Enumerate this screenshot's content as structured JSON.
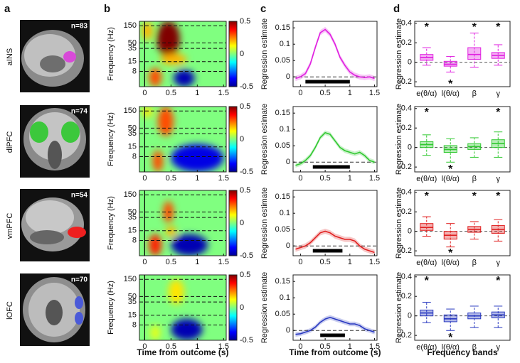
{
  "panel_labels": [
    "a",
    "b",
    "c",
    "d"
  ],
  "star_symbol": "*",
  "tf": {
    "ylabel": "Frequency (Hz)",
    "xlabel": "Time from outcome (s)",
    "log_y": true,
    "ylim": [
      3,
      200
    ],
    "yticks": [
      8,
      15,
      35,
      50,
      150
    ],
    "xlim": [
      -0.1,
      1.55
    ],
    "xticks": [
      0,
      0.5,
      1,
      1.5
    ],
    "clim": [
      -0.5,
      0.5
    ],
    "cticks": [
      0.5,
      0,
      -0.5
    ]
  },
  "curve_axis": {
    "ylabel": "Regression estimate",
    "xlabel": "Time from outcome (s)",
    "xlim": [
      -0.15,
      1.55
    ],
    "xticks": [
      0,
      0.5,
      1,
      1.5
    ],
    "x": [
      -0.1,
      0,
      0.1,
      0.2,
      0.3,
      0.4,
      0.5,
      0.6,
      0.7,
      0.8,
      0.9,
      1.0,
      1.1,
      1.2,
      1.3,
      1.4,
      1.5
    ]
  },
  "box_axis": {
    "ylabel": "Regression estimate",
    "xlabel": "Frequency bands",
    "categories": [
      "e(θ/α)",
      "l(θ/α)",
      "β",
      "γ"
    ],
    "ylim": [
      -0.25,
      0.42
    ],
    "yticks": [
      -0.2,
      0,
      0.2,
      0.4
    ]
  },
  "rows": [
    {
      "region": "aINS",
      "n_label": "n=83",
      "color": "#e020e0",
      "tf_blobs": [
        {
          "t": 0.45,
          "dt": 0.22,
          "f": [
            20,
            200
          ],
          "value": 0.5
        },
        {
          "t": 0.55,
          "dt": 0.25,
          "f": [
            12,
            25
          ],
          "value": 0.2
        },
        {
          "t": 0.2,
          "dt": 0.12,
          "f": [
            3,
            10
          ],
          "value": 0.3
        },
        {
          "t": 0.75,
          "dt": 0.2,
          "f": [
            3,
            9
          ],
          "value": -0.45
        },
        {
          "t": 0.05,
          "dt": 0.1,
          "f": [
            60,
            200
          ],
          "value": 0.2
        }
      ],
      "curve": {
        "values": [
          -0.005,
          0.0,
          0.01,
          0.04,
          0.09,
          0.135,
          0.145,
          0.13,
          0.1,
          0.06,
          0.035,
          0.015,
          0.005,
          0.0,
          -0.002,
          0.0,
          -0.005
        ],
        "sem": 0.008,
        "sig": [
          0.1,
          1.0
        ],
        "ylim": [
          -0.03,
          0.17
        ],
        "yticks": [
          0,
          0.05,
          0.1,
          0.15
        ]
      },
      "boxes": [
        {
          "whislo": -0.03,
          "q1": 0.02,
          "med": 0.05,
          "q3": 0.08,
          "whishi": 0.15,
          "star": "top"
        },
        {
          "whislo": -0.1,
          "q1": -0.04,
          "med": -0.02,
          "q3": 0.01,
          "whishi": 0.06,
          "star": "bottom"
        },
        {
          "whislo": -0.05,
          "q1": 0.03,
          "med": 0.08,
          "q3": 0.15,
          "whishi": 0.3,
          "star": "top"
        },
        {
          "whislo": -0.03,
          "q1": 0.04,
          "med": 0.07,
          "q3": 0.1,
          "whishi": 0.18,
          "star": "top"
        }
      ]
    },
    {
      "region": "dlPFC",
      "n_label": "n=74",
      "color": "#30c830",
      "tf_blobs": [
        {
          "t": 0.4,
          "dt": 0.15,
          "f": [
            30,
            200
          ],
          "value": 0.3
        },
        {
          "t": 0.25,
          "dt": 0.1,
          "f": [
            3,
            12
          ],
          "value": 0.3
        },
        {
          "t": 1.0,
          "dt": 0.5,
          "f": [
            3,
            18
          ],
          "value": -0.4
        },
        {
          "t": 0.05,
          "dt": 0.1,
          "f": [
            100,
            200
          ],
          "value": 0.15
        }
      ],
      "curve": {
        "values": [
          -0.01,
          -0.005,
          0.005,
          0.02,
          0.045,
          0.075,
          0.09,
          0.085,
          0.065,
          0.045,
          0.035,
          0.03,
          0.025,
          0.03,
          0.02,
          0.005,
          0.0
        ],
        "sem": 0.007,
        "sig": [
          0.25,
          1.0
        ],
        "ylim": [
          -0.03,
          0.17
        ],
        "yticks": [
          0,
          0.05,
          0.1,
          0.15
        ]
      },
      "boxes": [
        {
          "whislo": -0.08,
          "q1": 0.0,
          "med": 0.03,
          "q3": 0.06,
          "whishi": 0.13,
          "star": "top"
        },
        {
          "whislo": -0.15,
          "q1": -0.05,
          "med": -0.02,
          "q3": 0.02,
          "whishi": 0.09,
          "star": "bottom"
        },
        {
          "whislo": -0.1,
          "q1": -0.02,
          "med": 0.01,
          "q3": 0.04,
          "whishi": 0.1
        },
        {
          "whislo": -0.1,
          "q1": 0.0,
          "med": 0.04,
          "q3": 0.08,
          "whishi": 0.16,
          "star": "top"
        }
      ]
    },
    {
      "region": "vmPFC",
      "n_label": "n=54",
      "color": "#e02020",
      "tf_blobs": [
        {
          "t": 0.45,
          "dt": 0.1,
          "f": [
            25,
            100
          ],
          "value": 0.3
        },
        {
          "t": 0.2,
          "dt": 0.12,
          "f": [
            3,
            12
          ],
          "value": 0.35
        },
        {
          "t": 0.85,
          "dt": 0.35,
          "f": [
            3,
            12
          ],
          "value": -0.45
        },
        {
          "t": 0.5,
          "dt": 0.1,
          "f": [
            10,
            20
          ],
          "value": 0.2
        }
      ],
      "curve": {
        "values": [
          -0.01,
          -0.005,
          0.0,
          0.01,
          0.025,
          0.04,
          0.045,
          0.04,
          0.03,
          0.025,
          0.02,
          0.02,
          0.015,
          0.0,
          -0.01,
          -0.015,
          -0.02
        ],
        "sem": 0.008,
        "sig": [
          0.25,
          0.85
        ],
        "ylim": [
          -0.03,
          0.17
        ],
        "yticks": [
          0,
          0.05,
          0.1,
          0.15
        ]
      },
      "boxes": [
        {
          "whislo": -0.05,
          "q1": 0.01,
          "med": 0.04,
          "q3": 0.08,
          "whishi": 0.15,
          "star": "top"
        },
        {
          "whislo": -0.16,
          "q1": -0.08,
          "med": -0.04,
          "q3": 0.0,
          "whishi": 0.08,
          "star": "bottom"
        },
        {
          "whislo": -0.08,
          "q1": -0.01,
          "med": 0.02,
          "q3": 0.05,
          "whishi": 0.1,
          "star": "top"
        },
        {
          "whislo": -0.1,
          "q1": -0.02,
          "med": 0.02,
          "q3": 0.06,
          "whishi": 0.12,
          "star": "top"
        }
      ]
    },
    {
      "region": "lOFC",
      "n_label": "n=70",
      "color": "#2838c0",
      "tf_blobs": [
        {
          "t": 0.6,
          "dt": 0.15,
          "f": [
            30,
            150
          ],
          "value": 0.15
        },
        {
          "t": 0.8,
          "dt": 0.3,
          "f": [
            3,
            12
          ],
          "value": -0.45
        },
        {
          "t": 0.2,
          "dt": 0.1,
          "f": [
            3,
            8
          ],
          "value": 0.1
        }
      ],
      "curve": {
        "values": [
          -0.012,
          -0.01,
          -0.005,
          0.0,
          0.01,
          0.025,
          0.035,
          0.04,
          0.035,
          0.03,
          0.025,
          0.02,
          0.02,
          0.015,
          0.005,
          0.0,
          -0.005
        ],
        "sem": 0.007,
        "sig": [
          0.4,
          0.9
        ],
        "ylim": [
          -0.03,
          0.17
        ],
        "yticks": [
          0,
          0.05,
          0.1,
          0.15
        ]
      },
      "boxes": [
        {
          "whislo": -0.07,
          "q1": 0.0,
          "med": 0.03,
          "q3": 0.06,
          "whishi": 0.14,
          "star": "top"
        },
        {
          "whislo": -0.15,
          "q1": -0.06,
          "med": -0.03,
          "q3": 0.01,
          "whishi": 0.07,
          "star": "bottom"
        },
        {
          "whislo": -0.12,
          "q1": -0.03,
          "med": 0.0,
          "q3": 0.03,
          "whishi": 0.1
        },
        {
          "whislo": -0.12,
          "q1": -0.02,
          "med": 0.01,
          "q3": 0.04,
          "whishi": 0.1,
          "star": "top"
        }
      ]
    }
  ]
}
